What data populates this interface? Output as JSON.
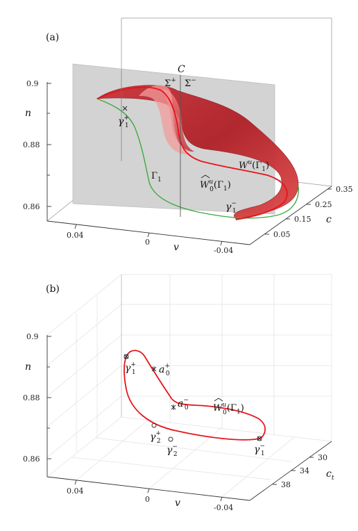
{
  "colors": {
    "manifold_fill": "#b8232b",
    "manifold_highlight": "#e85555",
    "curve_red": "#e8141b",
    "curve_green": "#3daa3d",
    "section_gray": "#d2d2d2",
    "axis": "#333333",
    "grid": "#dddddd"
  },
  "panel_a": {
    "label": "(a)",
    "axis_labels": {
      "n": "n",
      "v": "v",
      "c": "c"
    },
    "n_ticks": [
      "0.9",
      "0.88",
      "0.86"
    ],
    "v_ticks": [
      "0.04",
      "0",
      "-0.04"
    ],
    "c_ticks": [
      "0.35",
      "0.25",
      "0.15",
      "0.05"
    ],
    "labels": {
      "C": "C",
      "sigma_plus_base": "Σ",
      "sigma_plus_sup": "+",
      "sigma_minus_base": "Σ",
      "sigma_minus_sup": "−",
      "gamma1_plus_base": "γ",
      "gamma1_plus_sup": "+",
      "gamma1_plus_sub": "1",
      "gamma1_minus_base": "γ",
      "gamma1_minus_sup": "−",
      "gamma1_minus_sub": "1",
      "Gamma1_base": "Γ",
      "Gamma1_sub": "1",
      "Wu_text": "W",
      "Wu_sup": "u",
      "Wu_arg": "(Γ",
      "Wu_arg_sub": "1",
      "Wu_close": ")",
      "W0hat_text": "W",
      "W0hat_sup": "u",
      "W0hat_sub": "0",
      "W0hat_arg": "(Γ",
      "W0hat_arg_sub": "1",
      "W0hat_close": ")"
    }
  },
  "panel_b": {
    "label": "(b)",
    "axis_labels": {
      "n": "n",
      "v": "v",
      "c_base": "c",
      "c_sub": "t"
    },
    "n_ticks": [
      "0.9",
      "0.88",
      "0.86"
    ],
    "v_ticks": [
      "0.04",
      "0",
      "-0.04"
    ],
    "c_ticks": [
      "30",
      "34",
      "38"
    ],
    "labels": {
      "gamma1_plus_base": "γ",
      "gamma1_plus_sup": "+",
      "gamma1_plus_sub": "1",
      "a0_plus_base": "a",
      "a0_plus_sup": "+",
      "a0_plus_sub": "0",
      "a0_minus_base": "a",
      "a0_minus_sup": "−",
      "a0_minus_sub": "0",
      "gamma2_plus_base": "γ",
      "gamma2_plus_sup": "+",
      "gamma2_plus_sub": "2",
      "gamma2_minus_base": "γ",
      "gamma2_minus_sup": "−",
      "gamma2_minus_sub": "2",
      "gamma1_minus_base": "γ",
      "gamma1_minus_sup": "−",
      "gamma1_minus_sub": "1",
      "W0hat_text": "W",
      "W0hat_sup": "u",
      "W0hat_sub": "0",
      "W0hat_arg": "(Γ",
      "W0hat_arg_sub": "1",
      "W0hat_close": ")"
    }
  }
}
